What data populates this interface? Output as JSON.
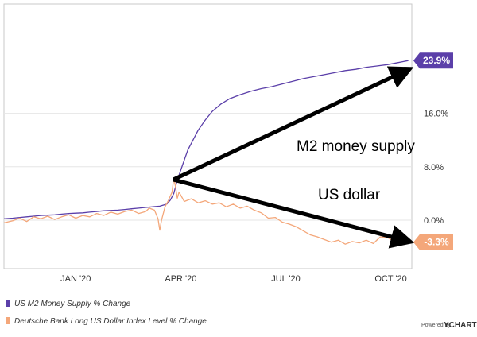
{
  "chart_data": {
    "type": "line",
    "y_ticks": [
      {
        "value": 0,
        "label": "0.0%"
      },
      {
        "value": 8,
        "label": "8.0%"
      },
      {
        "value": 16,
        "label": "16.0%"
      }
    ],
    "x_ticks": [
      {
        "t": 0.2,
        "label": "JAN '20"
      },
      {
        "t": 3.2,
        "label": "APR '20"
      },
      {
        "t": 6.2,
        "label": "JUL '20"
      },
      {
        "t": 9.2,
        "label": "OCT '20"
      }
    ],
    "series": [
      {
        "name": "US M2 Money Supply % Change",
        "color": "#5b3fa9",
        "end_label": "23.9%",
        "points": [
          [
            -1.85,
            0.2
          ],
          [
            -1.6,
            0.3
          ],
          [
            -1.4,
            0.4
          ],
          [
            -1.2,
            0.5
          ],
          [
            -1.0,
            0.6
          ],
          [
            -0.8,
            0.7
          ],
          [
            -0.6,
            0.75
          ],
          [
            -0.4,
            0.8
          ],
          [
            -0.2,
            0.9
          ],
          [
            0.0,
            1.0
          ],
          [
            0.2,
            1.05
          ],
          [
            0.4,
            1.1
          ],
          [
            0.6,
            1.2
          ],
          [
            0.8,
            1.3
          ],
          [
            1.0,
            1.4
          ],
          [
            1.2,
            1.45
          ],
          [
            1.4,
            1.5
          ],
          [
            1.6,
            1.6
          ],
          [
            1.8,
            1.7
          ],
          [
            2.0,
            1.8
          ],
          [
            2.2,
            1.9
          ],
          [
            2.4,
            2.0
          ],
          [
            2.6,
            2.1
          ],
          [
            2.8,
            2.4
          ],
          [
            2.9,
            3.0
          ],
          [
            3.0,
            4.0
          ],
          [
            3.1,
            6.0
          ],
          [
            3.2,
            7.5
          ],
          [
            3.3,
            9.0
          ],
          [
            3.4,
            10.5
          ],
          [
            3.55,
            12.0
          ],
          [
            3.7,
            13.5
          ],
          [
            3.9,
            15.0
          ],
          [
            4.1,
            16.3
          ],
          [
            4.35,
            17.4
          ],
          [
            4.6,
            18.2
          ],
          [
            4.9,
            18.8
          ],
          [
            5.2,
            19.3
          ],
          [
            5.5,
            19.7
          ],
          [
            5.8,
            20.0
          ],
          [
            6.1,
            20.4
          ],
          [
            6.4,
            20.8
          ],
          [
            6.7,
            21.2
          ],
          [
            7.0,
            21.5
          ],
          [
            7.3,
            21.8
          ],
          [
            7.6,
            22.1
          ],
          [
            7.9,
            22.4
          ],
          [
            8.2,
            22.6
          ],
          [
            8.5,
            22.9
          ],
          [
            8.8,
            23.1
          ],
          [
            9.1,
            23.3
          ],
          [
            9.4,
            23.6
          ],
          [
            9.7,
            23.9
          ]
        ]
      },
      {
        "name": "Deutsche Bank Long US Dollar Index Level % Change",
        "color": "#f4a77a",
        "end_label": "-3.3%",
        "points": [
          [
            -1.85,
            -0.4
          ],
          [
            -1.6,
            -0.1
          ],
          [
            -1.4,
            0.3
          ],
          [
            -1.2,
            -0.2
          ],
          [
            -1.0,
            0.5
          ],
          [
            -0.8,
            0.2
          ],
          [
            -0.6,
            0.6
          ],
          [
            -0.4,
            0.1
          ],
          [
            -0.2,
            0.5
          ],
          [
            0.0,
            0.8
          ],
          [
            0.2,
            0.3
          ],
          [
            0.4,
            0.7
          ],
          [
            0.6,
            0.5
          ],
          [
            0.8,
            1.0
          ],
          [
            1.0,
            0.7
          ],
          [
            1.2,
            1.2
          ],
          [
            1.4,
            0.9
          ],
          [
            1.6,
            1.3
          ],
          [
            1.8,
            1.5
          ],
          [
            2.0,
            1.0
          ],
          [
            2.2,
            1.3
          ],
          [
            2.3,
            1.8
          ],
          [
            2.45,
            1.5
          ],
          [
            2.55,
            0.2
          ],
          [
            2.6,
            -1.5
          ],
          [
            2.65,
            0.0
          ],
          [
            2.75,
            2.0
          ],
          [
            2.85,
            3.0
          ],
          [
            2.95,
            4.2
          ],
          [
            3.0,
            6.3
          ],
          [
            3.05,
            5.0
          ],
          [
            3.1,
            3.3
          ],
          [
            3.15,
            4.2
          ],
          [
            3.3,
            2.8
          ],
          [
            3.5,
            3.2
          ],
          [
            3.7,
            2.6
          ],
          [
            3.9,
            2.9
          ],
          [
            4.1,
            2.4
          ],
          [
            4.3,
            2.6
          ],
          [
            4.5,
            2.0
          ],
          [
            4.7,
            2.4
          ],
          [
            4.9,
            1.8
          ],
          [
            5.1,
            2.1
          ],
          [
            5.3,
            1.5
          ],
          [
            5.5,
            1.1
          ],
          [
            5.7,
            0.3
          ],
          [
            5.9,
            0.4
          ],
          [
            6.1,
            -0.3
          ],
          [
            6.3,
            -0.6
          ],
          [
            6.5,
            -1.0
          ],
          [
            6.7,
            -1.6
          ],
          [
            6.9,
            -2.2
          ],
          [
            7.1,
            -2.5
          ],
          [
            7.3,
            -2.9
          ],
          [
            7.5,
            -3.3
          ],
          [
            7.7,
            -3.0
          ],
          [
            7.9,
            -3.6
          ],
          [
            8.1,
            -3.2
          ],
          [
            8.3,
            -3.4
          ],
          [
            8.5,
            -3.0
          ],
          [
            8.7,
            -3.5
          ],
          [
            8.9,
            -2.5
          ],
          [
            9.1,
            -2.6
          ],
          [
            9.3,
            -3.2
          ],
          [
            9.5,
            -3.7
          ],
          [
            9.7,
            -3.3
          ]
        ]
      }
    ],
    "annotations": [
      {
        "text": "M2 money supply"
      },
      {
        "text": "US dollar"
      }
    ],
    "grid": "horizontal",
    "legend_position": "bottom-left"
  },
  "credit": {
    "powered_by": "Powered by",
    "brand": "YCHARTS"
  }
}
